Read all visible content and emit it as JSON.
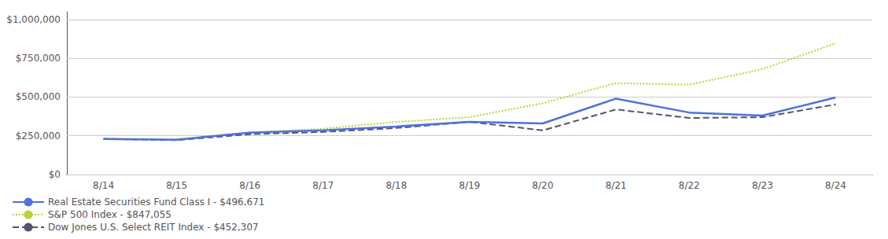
{
  "chart_data": {
    "type": "line",
    "categories": [
      "8/14",
      "8/15",
      "8/16",
      "8/17",
      "8/18",
      "8/19",
      "8/20",
      "8/21",
      "8/22",
      "8/23",
      "8/24"
    ],
    "series": [
      {
        "name": "Real Estate Securities Fund Class I - $496,671",
        "line_style": "solid",
        "values": [
          230000,
          225000,
          270000,
          285000,
          310000,
          340000,
          330000,
          490000,
          400000,
          380000,
          496671
        ]
      },
      {
        "name": "S&P 500 Index - $847,055",
        "line_style": "dotted",
        "values": [
          230000,
          228000,
          272000,
          295000,
          340000,
          370000,
          460000,
          590000,
          580000,
          680000,
          847055
        ]
      },
      {
        "name": "Dow Jones U.S. Select REIT Index - $452,307",
        "line_style": "dashed",
        "values": [
          230000,
          222000,
          260000,
          275000,
          300000,
          340000,
          285000,
          420000,
          365000,
          370000,
          452307
        ]
      }
    ],
    "ylim": [
      0,
      1050000
    ],
    "yticks": [
      {
        "value": 0,
        "label": "$0"
      },
      {
        "value": 250000,
        "label": "$250,000"
      },
      {
        "value": 500000,
        "label": "$500,000"
      },
      {
        "value": 750000,
        "label": "$750,000"
      },
      {
        "value": 1000000,
        "label": "$1,000,000"
      }
    ],
    "grid": true,
    "legend": "bottom"
  }
}
